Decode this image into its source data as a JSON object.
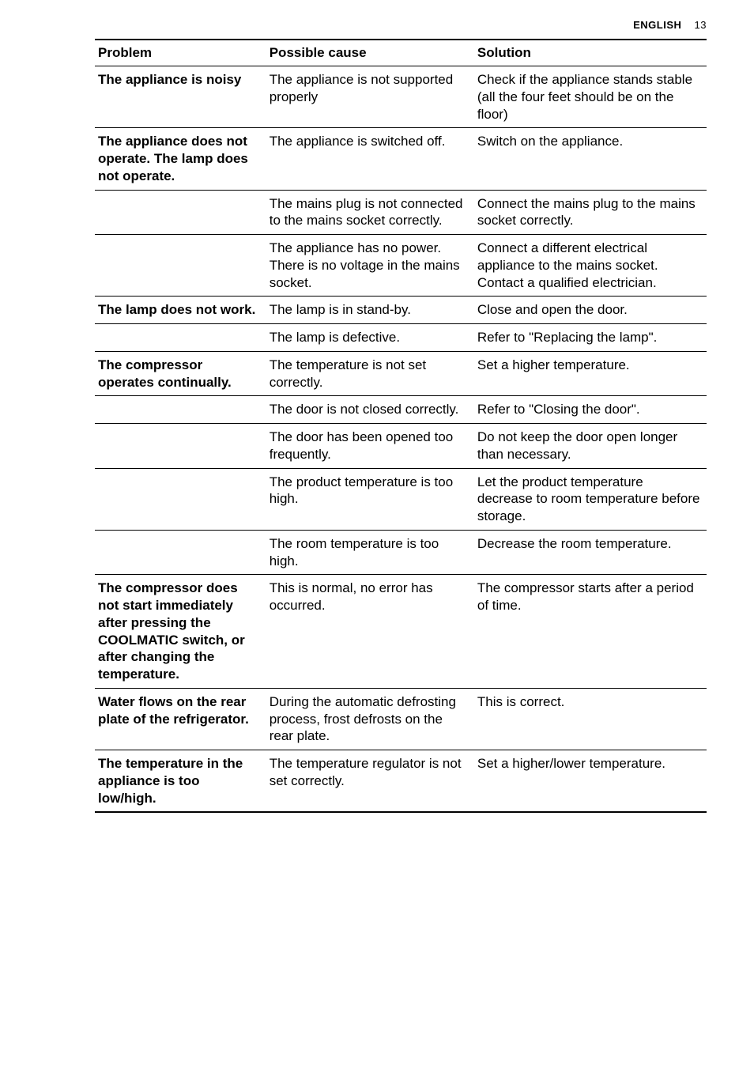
{
  "header": {
    "lang": "ENGLISH",
    "page": "13"
  },
  "table": {
    "headers": {
      "problem": "Problem",
      "cause": "Possible cause",
      "solution": "Solution"
    },
    "rows": [
      {
        "problem": "The appliance is noisy",
        "cause": "The appliance is not supported properly",
        "solution": "Check if the appliance stands stable (all the four feet should be on the floor)"
      },
      {
        "problem": "The appliance does not operate. The lamp does not operate.",
        "cause": "The appliance is switched off.",
        "solution": "Switch on the appliance."
      },
      {
        "problem": "",
        "cause": "The mains plug is not connected to the mains socket correctly.",
        "solution": "Connect the mains plug to the mains socket correctly."
      },
      {
        "problem": "",
        "cause": "The appliance has no power. There is no voltage in the mains socket.",
        "solution": "Connect a different electrical appliance to the mains socket.\nContact a qualified electrician."
      },
      {
        "problem": "The lamp does not work.",
        "cause": "The lamp is in stand-by.",
        "solution": "Close and open the door."
      },
      {
        "problem": "",
        "cause": "The lamp is defective.",
        "solution": "Refer to \"Replacing the lamp\"."
      },
      {
        "problem": "The compressor operates continually.",
        "cause": "The temperature is not set correctly.",
        "solution": "Set a higher temperature."
      },
      {
        "problem": "",
        "cause": "The door is not closed correctly.",
        "solution": "Refer to \"Closing the door\"."
      },
      {
        "problem": "",
        "cause": "The door has been opened too frequently.",
        "solution": "Do not keep the door open longer than necessary."
      },
      {
        "problem": "",
        "cause": "The product temperature is too high.",
        "solution": "Let the product temperature decrease to room temperature before storage."
      },
      {
        "problem": "",
        "cause": "The room temperature is too high.",
        "solution": "Decrease the room temperature."
      },
      {
        "problem": "The compressor does not start immediately after pressing the COOLMATIC switch, or after changing the temperature.",
        "cause": "This is normal, no error has occurred.",
        "solution": "The compressor starts after a period of time."
      },
      {
        "problem": "Water flows on the rear plate of the refrigerator.",
        "cause": "During the automatic defrosting process, frost defrosts on the rear plate.",
        "solution": "This is correct."
      },
      {
        "problem": "The temperature in the appliance is too low/high.",
        "cause": "The temperature regulator is not set correctly.",
        "solution": "Set a higher/lower temperature."
      }
    ]
  }
}
